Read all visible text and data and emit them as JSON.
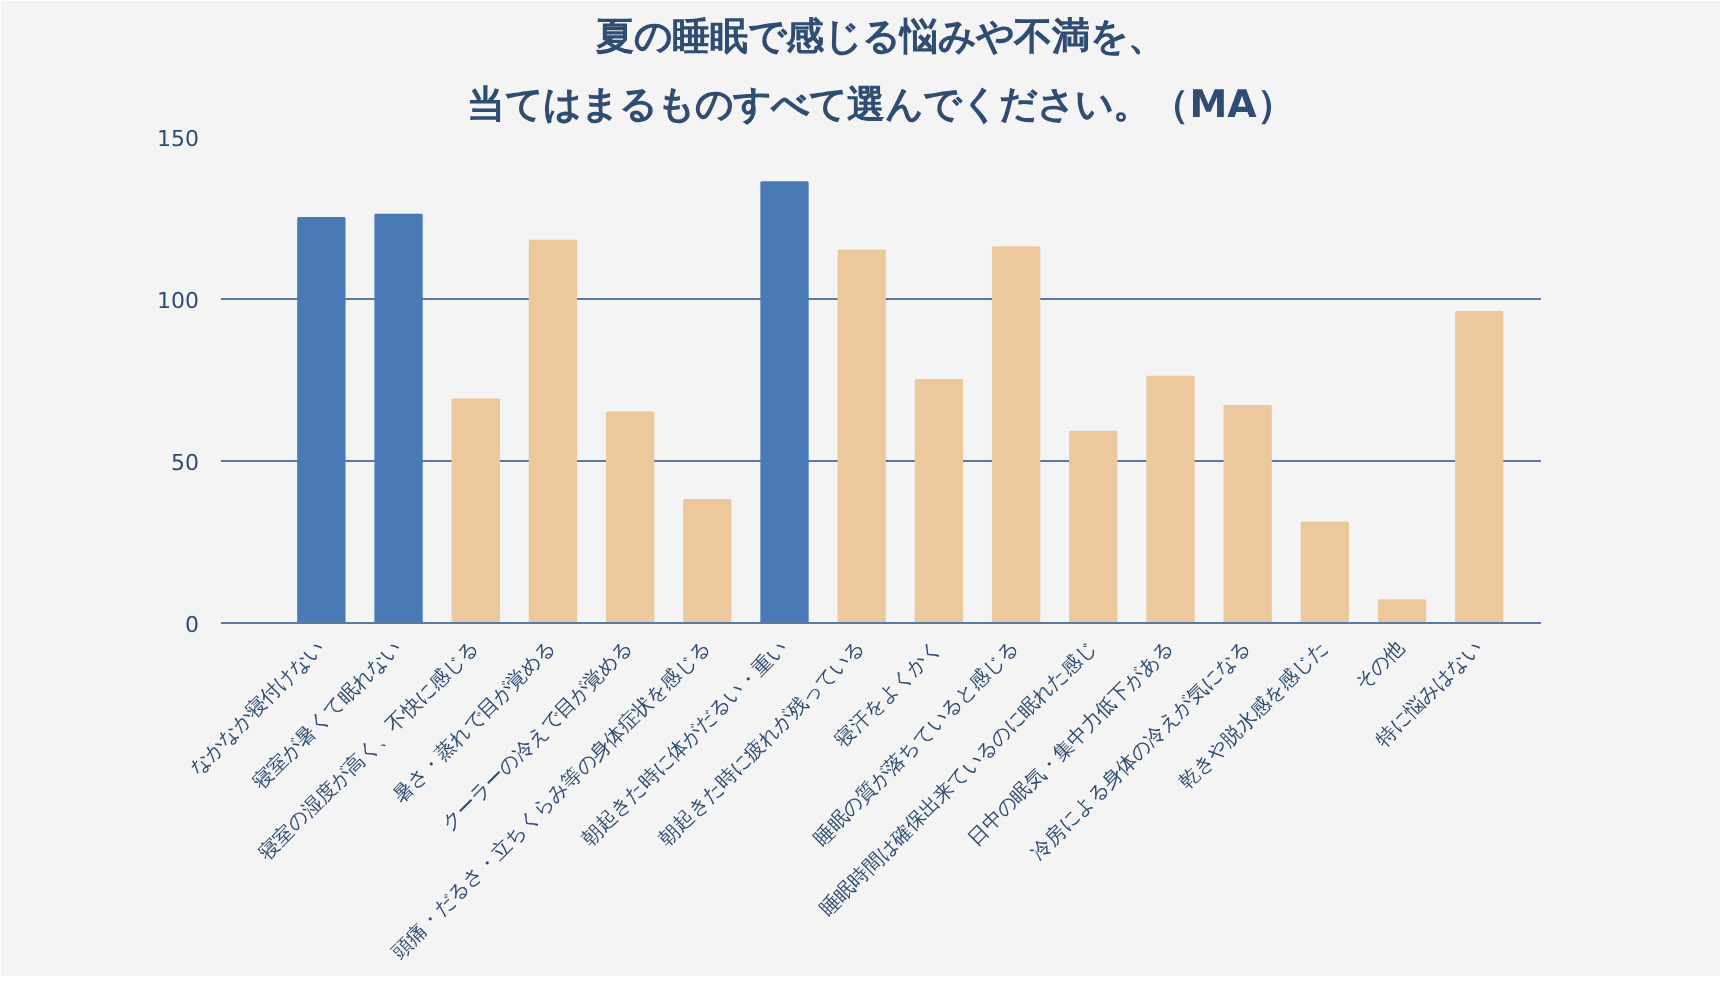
{
  "chart_data": {
    "type": "bar",
    "title": "夏の睡眠で感じる悩みや不満を、",
    "subtitle": "当てはまるものすべて選んでください。（MA）",
    "categories": [
      "なかなか寝付けない",
      "寝室が暑くて眠れない",
      "寝室の湿度が高く、不快に感じる",
      "暑さ・蒸れで目が覚める",
      "クーラーの冷えで目が覚める",
      "頭痛・だるさ・立ちくらみ等の身体症状を感じる",
      "朝起きた時に体がだるい・重い",
      "朝起きた時に疲れが残っている",
      "寝汗をよくかく",
      "睡眠の質が落ちていると感じる",
      "睡眠時間は確保出来ているのに眠れた感じ",
      "日中の眠気・集中力低下がある",
      "冷房による身体の冷えが気になる",
      "乾きや脱水感を感じた",
      "その他",
      "特に悩みはない"
    ],
    "values": [
      125,
      126,
      69,
      118,
      65,
      38,
      136,
      115,
      75,
      116,
      59,
      76,
      67,
      31,
      7,
      96
    ],
    "colors": [
      "#4a7ab5",
      "#4a7ab5",
      "#edc89c",
      "#edc89c",
      "#edc89c",
      "#edc89c",
      "#4a7ab5",
      "#edc89c",
      "#edc89c",
      "#edc89c",
      "#edc89c",
      "#edc89c",
      "#edc89c",
      "#edc89c",
      "#edc89c",
      "#edc89c"
    ],
    "ylim": [
      0,
      150
    ],
    "yticks": [
      0,
      50,
      100,
      150
    ],
    "grid": "y"
  }
}
